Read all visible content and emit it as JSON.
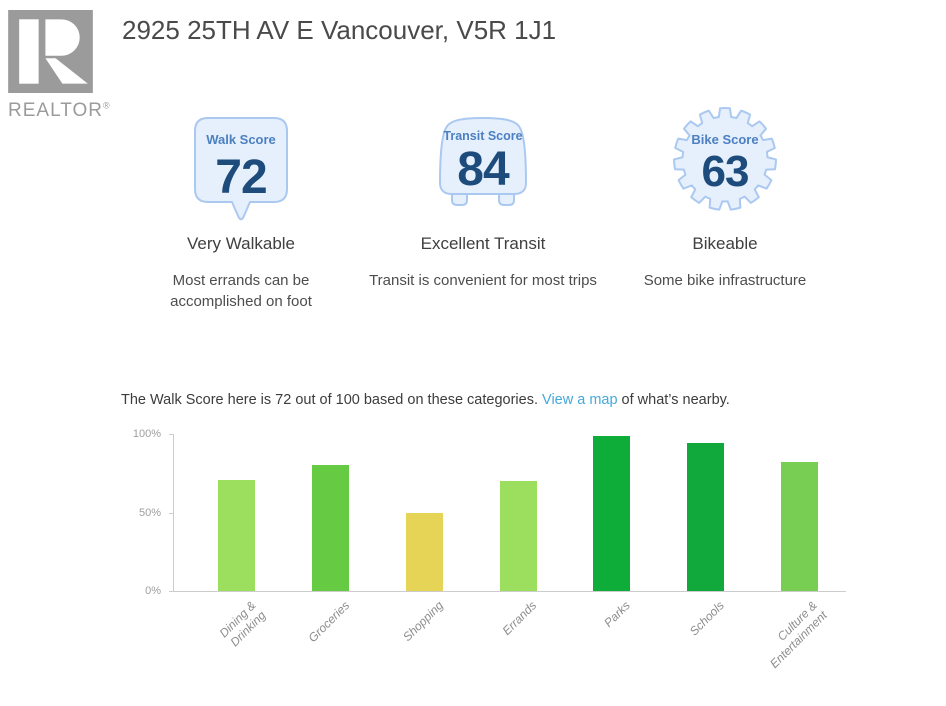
{
  "brand": {
    "name": "REALTOR",
    "registered": "®"
  },
  "header": {
    "title": "2925 25TH AV E Vancouver, V5R 1J1"
  },
  "scores": [
    {
      "label": "Walk Score",
      "value": "72",
      "heading": "Very Walkable",
      "description": "Most errands can be accomplished on foot"
    },
    {
      "label": "Transit Score",
      "value": "84",
      "heading": "Excellent Transit",
      "description": "Transit is convenient for most trips"
    },
    {
      "label": "Bike Score",
      "value": "63",
      "heading": "Bikeable",
      "description": "Some bike infrastructure"
    }
  ],
  "caption": {
    "prefix": "The Walk Score here is 72 out of 100 based on these categories. ",
    "link_text": "View a map",
    "suffix": " of what’s nearby."
  },
  "chart_data": {
    "type": "bar",
    "categories": [
      "Dining &\nDrinking",
      "Groceries",
      "Shopping",
      "Errands",
      "Parks",
      "Schools",
      "Culture &\nEntertainment"
    ],
    "values": [
      71,
      80,
      50,
      70,
      99,
      94,
      82
    ],
    "bar_colors": [
      "#9cdf5e",
      "#66cb43",
      "#e5d455",
      "#9cdf5e",
      "#0ead3a",
      "#11a83c",
      "#77ce52"
    ],
    "title": "",
    "xlabel": "",
    "ylabel": "",
    "ylim": [
      0,
      100
    ],
    "yticks": [
      "100%",
      "50%",
      "0%"
    ],
    "grid": false,
    "legend": false
  },
  "theme": {
    "badge_fill": "#e6effc",
    "badge_border": "#abc9f0",
    "badge_label": "#4c80c0",
    "badge_number": "#1c4b7c",
    "link_color": "#45a9da",
    "logo_gray": "#9b9b9b",
    "axis_color": "#cccccc",
    "tick_label_color": "#9e9e9e",
    "xlabel_color": "#8d8d8d",
    "heading_color": "#404040",
    "body_color": "#4d4d4d"
  }
}
